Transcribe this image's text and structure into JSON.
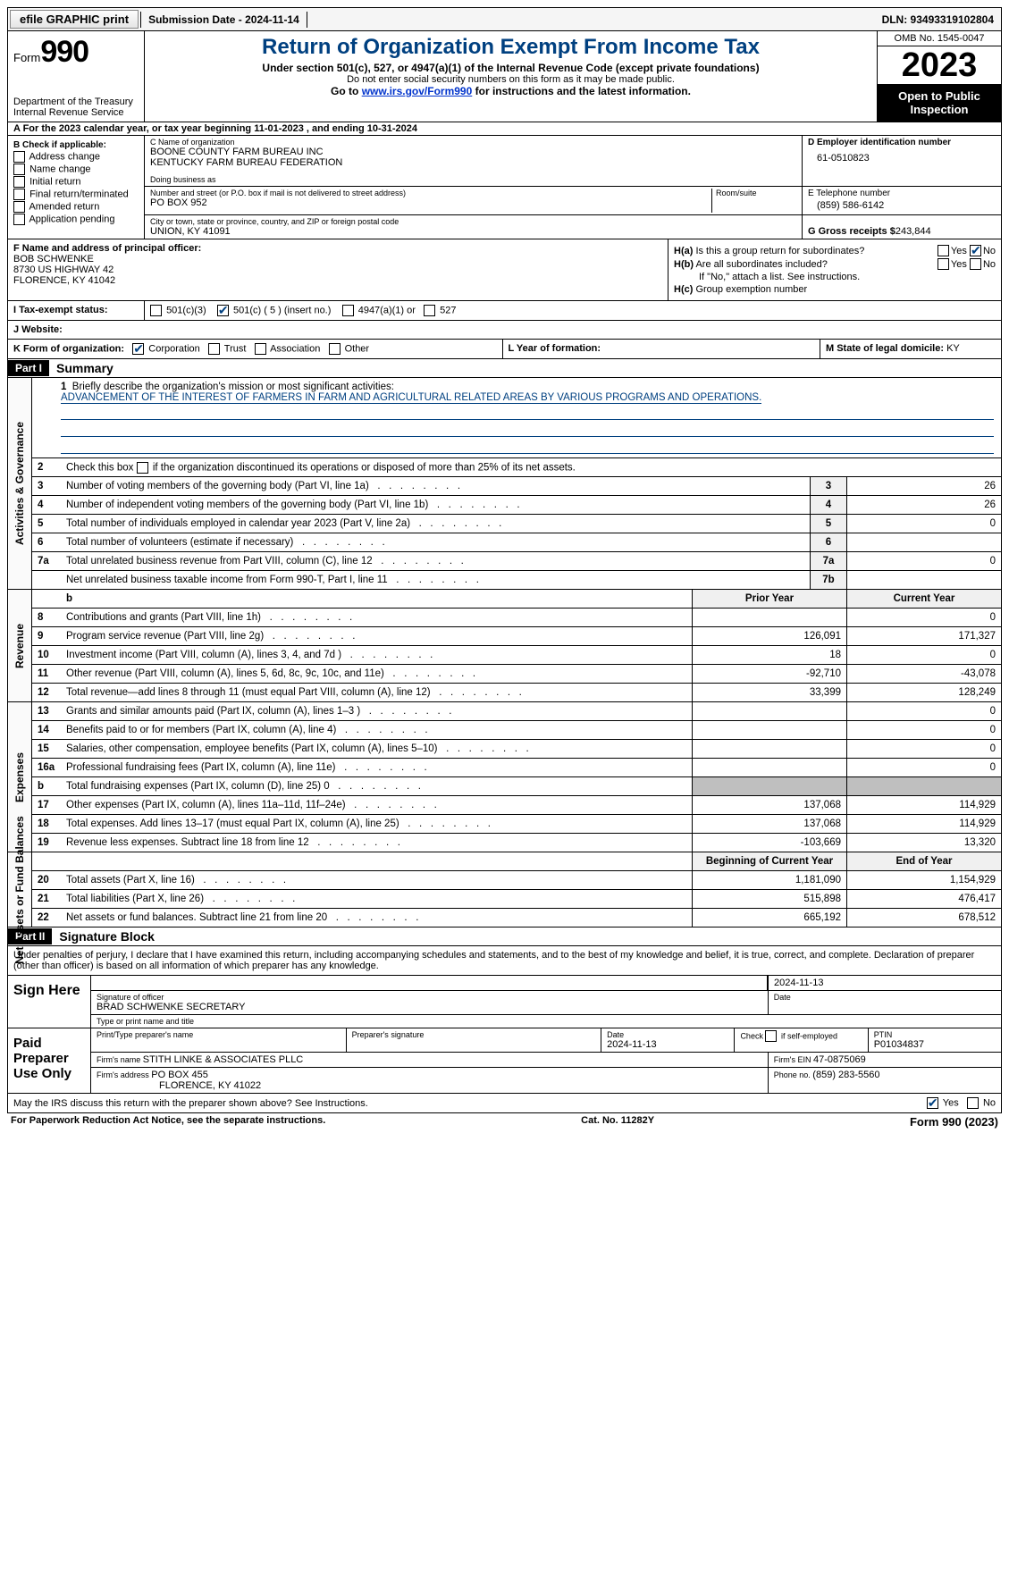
{
  "topbar": {
    "efile_label": "efile GRAPHIC print",
    "submission_label": "Submission Date - 2024-11-14",
    "dln_label": "DLN: 93493319102804"
  },
  "header": {
    "form_label": "Form",
    "form_number": "990",
    "dept": "Department of the Treasury\nInternal Revenue Service",
    "title": "Return of Organization Exempt From Income Tax",
    "sub1": "Under section 501(c), 527, or 4947(a)(1) of the Internal Revenue Code (except private foundations)",
    "sub2": "Do not enter social security numbers on this form as it may be made public.",
    "sub3_prefix": "Go to ",
    "sub3_link": "www.irs.gov/Form990",
    "sub3_suffix": " for instructions and the latest information.",
    "omb": "OMB No. 1545-0047",
    "year": "2023",
    "open": "Open to Public Inspection"
  },
  "row_a": "A For the 2023 calendar year, or tax year beginning 11-01-2023   , and ending 10-31-2024",
  "section_b": {
    "header": "B Check if applicable:",
    "items": [
      "Address change",
      "Name change",
      "Initial return",
      "Final return/terminated",
      "Amended return",
      "Application pending"
    ]
  },
  "section_c": {
    "name_lbl": "C Name of organization",
    "name1": "BOONE COUNTY FARM BUREAU INC",
    "name2": "KENTUCKY FARM BUREAU FEDERATION",
    "dba_lbl": "Doing business as",
    "addr_lbl": "Number and street (or P.O. box if mail is not delivered to street address)",
    "room_lbl": "Room/suite",
    "addr": "PO BOX 952",
    "city_lbl": "City or town, state or province, country, and ZIP or foreign postal code",
    "city": "UNION, KY  41091"
  },
  "section_d": {
    "ein_lbl": "D Employer identification number",
    "ein": "61-0510823",
    "tel_lbl": "E Telephone number",
    "tel": "(859) 586-6142",
    "gross_lbl": "G Gross receipts $ ",
    "gross": "243,844"
  },
  "section_f": {
    "lbl": "F  Name and address of principal officer:",
    "name": "BOB SCHWENKE",
    "addr1": "8730 US HIGHWAY 42",
    "addr2": "FLORENCE, KY  41042"
  },
  "section_h": {
    "a_lbl": "H(a)  Is this a group return for subordinates?",
    "b_lbl": "H(b)  Are all subordinates included?",
    "b_note": "If \"No,\" attach a list. See instructions.",
    "c_lbl": "H(c)  Group exemption number",
    "yes": "Yes",
    "no": "No"
  },
  "row_i": {
    "lbl": "I    Tax-exempt status:",
    "o1": "501(c)(3)",
    "o2": "501(c) ( 5 ) (insert no.)",
    "o3": "4947(a)(1) or",
    "o4": "527"
  },
  "row_j": {
    "lbl": "J   Website:"
  },
  "row_k": {
    "lbl": "K Form of organization:",
    "o1": "Corporation",
    "o2": "Trust",
    "o3": "Association",
    "o4": "Other",
    "l_lbl": "L Year of formation:",
    "m_lbl": "M State of legal domicile: ",
    "m_val": "KY"
  },
  "part1": {
    "hdr": "Part I",
    "title": "Summary",
    "tabs": {
      "gov": "Activities & Governance",
      "rev": "Revenue",
      "exp": "Expenses",
      "net": "Net Assets or Fund Balances"
    },
    "mission_lbl_num": "1",
    "mission_lbl": "Briefly describe the organization's mission or most significant activities:",
    "mission_text": "ADVANCEMENT OF THE INTEREST OF FARMERS IN FARM AND AGRICULTURAL RELATED AREAS BY VARIOUS PROGRAMS AND OPERATIONS.",
    "l2_num": "2",
    "l2": "Check this box          if the organization discontinued its operations or disposed of more than 25% of its net assets.",
    "gov_rows": [
      {
        "n": "3",
        "t": "Number of voting members of the governing body (Part VI, line 1a)",
        "c": "3",
        "v": "26"
      },
      {
        "n": "4",
        "t": "Number of independent voting members of the governing body (Part VI, line 1b)",
        "c": "4",
        "v": "26"
      },
      {
        "n": "5",
        "t": "Total number of individuals employed in calendar year 2023 (Part V, line 2a)",
        "c": "5",
        "v": "0"
      },
      {
        "n": "6",
        "t": "Total number of volunteers (estimate if necessary)",
        "c": "6",
        "v": ""
      },
      {
        "n": "7a",
        "t": "Total unrelated business revenue from Part VIII, column (C), line 12",
        "c": "7a",
        "v": "0"
      },
      {
        "n": "",
        "t": "Net unrelated business taxable income from Form 990-T, Part I, line 11",
        "c": "7b",
        "v": ""
      }
    ],
    "col_prior": "Prior Year",
    "col_current": "Current Year",
    "rev_rows": [
      {
        "n": "8",
        "t": "Contributions and grants (Part VIII, line 1h)",
        "p": "",
        "c": "0"
      },
      {
        "n": "9",
        "t": "Program service revenue (Part VIII, line 2g)",
        "p": "126,091",
        "c": "171,327"
      },
      {
        "n": "10",
        "t": "Investment income (Part VIII, column (A), lines 3, 4, and 7d )",
        "p": "18",
        "c": "0"
      },
      {
        "n": "11",
        "t": "Other revenue (Part VIII, column (A), lines 5, 6d, 8c, 9c, 10c, and 11e)",
        "p": "-92,710",
        "c": "-43,078"
      },
      {
        "n": "12",
        "t": "Total revenue—add lines 8 through 11 (must equal Part VIII, column (A), line 12)",
        "p": "33,399",
        "c": "128,249"
      }
    ],
    "exp_rows": [
      {
        "n": "13",
        "t": "Grants and similar amounts paid (Part IX, column (A), lines 1–3 )",
        "p": "",
        "c": "0"
      },
      {
        "n": "14",
        "t": "Benefits paid to or for members (Part IX, column (A), line 4)",
        "p": "",
        "c": "0"
      },
      {
        "n": "15",
        "t": "Salaries, other compensation, employee benefits (Part IX, column (A), lines 5–10)",
        "p": "",
        "c": "0"
      },
      {
        "n": "16a",
        "t": "Professional fundraising fees (Part IX, column (A), line 11e)",
        "p": "",
        "c": "0"
      },
      {
        "n": "b",
        "t": "Total fundraising expenses (Part IX, column (D), line 25) 0",
        "p": "SHADE",
        "c": "SHADE"
      },
      {
        "n": "17",
        "t": "Other expenses (Part IX, column (A), lines 11a–11d, 11f–24e)",
        "p": "137,068",
        "c": "114,929"
      },
      {
        "n": "18",
        "t": "Total expenses. Add lines 13–17 (must equal Part IX, column (A), line 25)",
        "p": "137,068",
        "c": "114,929"
      },
      {
        "n": "19",
        "t": "Revenue less expenses. Subtract line 18 from line 12",
        "p": "-103,669",
        "c": "13,320"
      }
    ],
    "col_begin": "Beginning of Current Year",
    "col_end": "End of Year",
    "net_rows": [
      {
        "n": "20",
        "t": "Total assets (Part X, line 16)",
        "p": "1,181,090",
        "c": "1,154,929"
      },
      {
        "n": "21",
        "t": "Total liabilities (Part X, line 26)",
        "p": "515,898",
        "c": "476,417"
      },
      {
        "n": "22",
        "t": "Net assets or fund balances. Subtract line 21 from line 20",
        "p": "665,192",
        "c": "678,512"
      }
    ]
  },
  "part2": {
    "hdr": "Part II",
    "title": "Signature Block",
    "decl": "Under penalties of perjury, I declare that I have examined this return, including accompanying schedules and statements, and to the best of my knowledge and belief, it is true, correct, and complete. Declaration of preparer (other than officer) is based on all information of which preparer has any knowledge.",
    "sign_here": "Sign Here",
    "sig_officer_lbl": "Signature of officer",
    "sig_date_lbl": "Date",
    "sig_date_top": "2024-11-13",
    "officer_name": "BRAD SCHWENKE  SECRETARY",
    "type_lbl": "Type or print name and title",
    "paid_lbl": "Paid Preparer Use Only",
    "prep_name_lbl": "Print/Type preparer's name",
    "prep_sig_lbl": "Preparer's signature",
    "prep_date_lbl": "Date",
    "prep_date": "2024-11-13",
    "prep_check_lbl": "Check          if self-employed",
    "ptin_lbl": "PTIN",
    "ptin": "P01034837",
    "firm_name_lbl": "Firm's name   ",
    "firm_name": "STITH LINKE & ASSOCIATES PLLC",
    "firm_ein_lbl": "Firm's EIN  ",
    "firm_ein": "47-0875069",
    "firm_addr_lbl": "Firm's address ",
    "firm_addr1": "PO BOX 455",
    "firm_addr2": "FLORENCE, KY  41022",
    "firm_phone_lbl": "Phone no. ",
    "firm_phone": "(859) 283-5560",
    "discuss": "May the IRS discuss this return with the preparer shown above? See Instructions.",
    "yes": "Yes",
    "no": "No"
  },
  "footer": {
    "left": "For Paperwork Reduction Act Notice, see the separate instructions.",
    "mid": "Cat. No. 11282Y",
    "right_a": "Form ",
    "right_b": "990",
    "right_c": " (2023)"
  }
}
